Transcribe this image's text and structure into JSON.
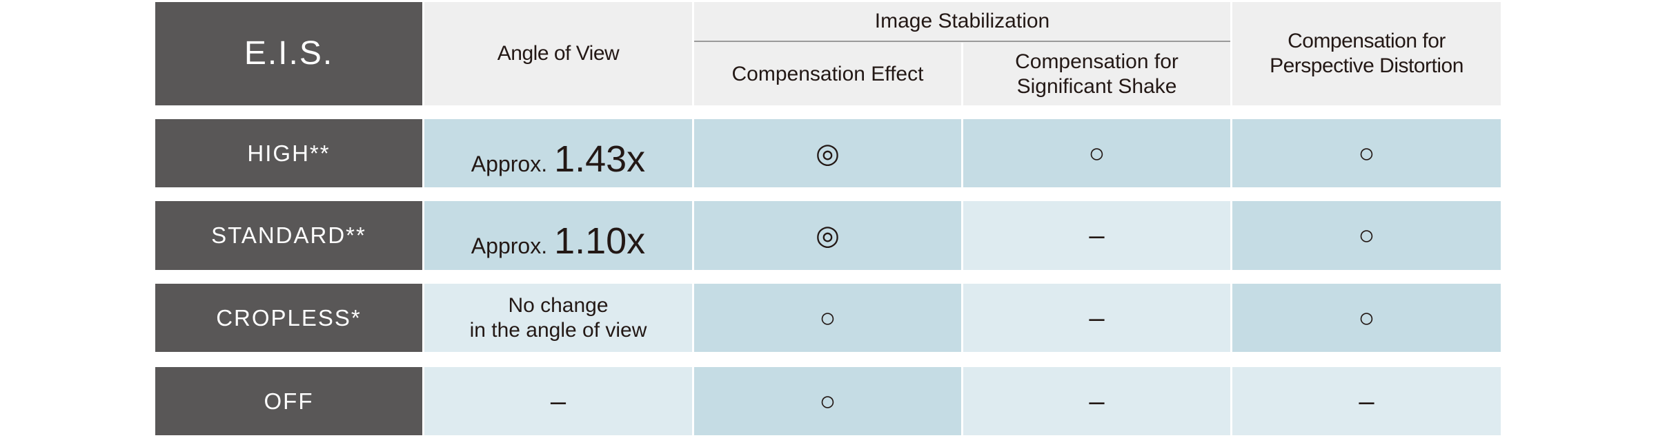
{
  "header": {
    "eis": "E.I.S.",
    "angle": "Angle of View",
    "stabilization": "Image Stabilization",
    "compensation_effect": "Compensation Effect",
    "significant_shake": [
      "Compensation for",
      "Significant Shake"
    ],
    "perspective": [
      "Compensation for",
      "Perspective Distortion"
    ]
  },
  "rows": [
    {
      "mode": "HIGH**",
      "angle_prefix": "Approx.",
      "angle_value": "1.43x",
      "effect": "◎",
      "shake": "○",
      "perspective": "○"
    },
    {
      "mode": "STANDARD**",
      "angle_prefix": "Approx.",
      "angle_value": "1.10x",
      "effect": "◎",
      "shake": "–",
      "perspective": "○"
    },
    {
      "mode": "CROPLESS*",
      "angle_text": [
        "No change",
        "in the angle of view"
      ],
      "effect": "○",
      "shake": "–",
      "perspective": "○"
    },
    {
      "mode": "OFF",
      "angle_text": [
        "–"
      ],
      "effect": "○",
      "shake": "–",
      "perspective": "–"
    }
  ]
}
